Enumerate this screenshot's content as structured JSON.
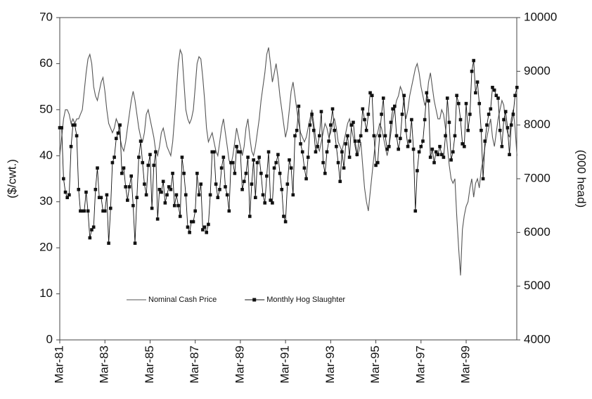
{
  "chart_data": {
    "type": "line",
    "y_label": "($/cwt.)",
    "y2_label": "(000 head)",
    "categories": [
      "Mar-81",
      null,
      null,
      null,
      null,
      null,
      null,
      null,
      null,
      null,
      null,
      null,
      null,
      null,
      null,
      null,
      null,
      null,
      null,
      null,
      null,
      null,
      null,
      null,
      "Mar-83",
      null,
      null,
      null,
      null,
      null,
      null,
      null,
      null,
      null,
      null,
      null,
      null,
      null,
      null,
      null,
      null,
      null,
      null,
      null,
      null,
      null,
      null,
      null,
      "Mar-85",
      null,
      null,
      null,
      null,
      null,
      null,
      null,
      null,
      null,
      null,
      null,
      null,
      null,
      null,
      null,
      null,
      null,
      null,
      null,
      null,
      null,
      null,
      null,
      "Mar-87",
      null,
      null,
      null,
      null,
      null,
      null,
      null,
      null,
      null,
      null,
      null,
      null,
      null,
      null,
      null,
      null,
      null,
      null,
      null,
      null,
      null,
      null,
      null,
      "Mar-89",
      null,
      null,
      null,
      null,
      null,
      null,
      null,
      null,
      null,
      null,
      null,
      null,
      null,
      null,
      null,
      null,
      null,
      null,
      null,
      null,
      null,
      null,
      null,
      "Mar-91",
      null,
      null,
      null,
      null,
      null,
      null,
      null,
      null,
      null,
      null,
      null,
      null,
      null,
      null,
      null,
      null,
      null,
      null,
      null,
      null,
      null,
      null,
      null,
      "Mar-93",
      null,
      null,
      null,
      null,
      null,
      null,
      null,
      null,
      null,
      null,
      null,
      null,
      null,
      null,
      null,
      null,
      null,
      null,
      null,
      null,
      null,
      null,
      null,
      "Mar-95",
      null,
      null,
      null,
      null,
      null,
      null,
      null,
      null,
      null,
      null,
      null,
      null,
      null,
      null,
      null,
      null,
      null,
      null,
      null,
      null,
      null,
      null,
      null,
      "Mar-97",
      null,
      null,
      null,
      null,
      null,
      null,
      null,
      null,
      null,
      null,
      null,
      null,
      null,
      null,
      null,
      null,
      null,
      null,
      null,
      null,
      null,
      null,
      null,
      "Mar-99",
      null,
      null,
      null,
      null,
      null,
      null,
      null,
      null,
      null,
      null,
      null,
      null,
      null,
      null,
      null,
      null,
      null,
      null,
      null,
      null,
      null,
      null,
      null,
      null,
      null,
      null,
      null
    ],
    "series": [
      {
        "name": "Nominal Cash Price",
        "color": "#555555",
        "axis": "y",
        "marker": false,
        "values": [
          40,
          44,
          48,
          50,
          50,
          49,
          47,
          48,
          47,
          48,
          48,
          49,
          50,
          54,
          58,
          61,
          62,
          60,
          55,
          53,
          52,
          54,
          56,
          57,
          54,
          50,
          47,
          46,
          45,
          46,
          48,
          47,
          44,
          42,
          41,
          43,
          46,
          49,
          52,
          54,
          52,
          49,
          46,
          44,
          43,
          45,
          49,
          50,
          48,
          46,
          44,
          41,
          40,
          42,
          45,
          46,
          44,
          42,
          41,
          40,
          43,
          48,
          54,
          60,
          63,
          62,
          56,
          50,
          48,
          47,
          48,
          50,
          55,
          60,
          61.5,
          61,
          57,
          52,
          46,
          43,
          44,
          45,
          43,
          41,
          40,
          43,
          46,
          48,
          45,
          42,
          39,
          38,
          40,
          43,
          46,
          44,
          42,
          40,
          42,
          46,
          48,
          44,
          41,
          40,
          42,
          45,
          48,
          52,
          55,
          58,
          62,
          63.5,
          60,
          56,
          58,
          60,
          57,
          53,
          50,
          47,
          44,
          46,
          50,
          54,
          56,
          53,
          50,
          47,
          45,
          44,
          43,
          44,
          46,
          48,
          50,
          47,
          44,
          42,
          41,
          43,
          45,
          47,
          46,
          44,
          45,
          47,
          48,
          46,
          43,
          42,
          41,
          43,
          45,
          47,
          48,
          46,
          44,
          42,
          40,
          41,
          43,
          38,
          33,
          30,
          28,
          32,
          36,
          40,
          44,
          45,
          47,
          46,
          44,
          42,
          40,
          42,
          45,
          48,
          50,
          52,
          53,
          55,
          54,
          51,
          48,
          50,
          53,
          55,
          57,
          59,
          60,
          58,
          55,
          53,
          51,
          52,
          56,
          58,
          55,
          52,
          50,
          48,
          48,
          50,
          49,
          46,
          42,
          38,
          35,
          34,
          35,
          27,
          20,
          14,
          24,
          27,
          29,
          30,
          33,
          35,
          31,
          34,
          35,
          33,
          37,
          39,
          42,
          44,
          46,
          48,
          44,
          42,
          45,
          48,
          50,
          52,
          51,
          47,
          45,
          44,
          48,
          50,
          46,
          40
        ]
      },
      {
        "name": "Monthly Hog Slaughter",
        "color": "#111111",
        "axis": "y2",
        "marker": true,
        "values": [
          7950,
          7950,
          7000,
          6750,
          6650,
          6700,
          7600,
          8000,
          8000,
          7800,
          6800,
          6400,
          6400,
          6400,
          6750,
          6400,
          5900,
          6050,
          6100,
          6800,
          7200,
          6650,
          6650,
          6400,
          6400,
          6700,
          5800,
          6450,
          7300,
          7400,
          7750,
          7850,
          8000,
          7100,
          7200,
          6850,
          6600,
          6850,
          7050,
          6500,
          5800,
          6650,
          7400,
          7700,
          7300,
          6900,
          6700,
          7250,
          7450,
          6450,
          7250,
          7500,
          6250,
          6800,
          6750,
          6950,
          6550,
          6700,
          6850,
          6800,
          7100,
          6500,
          6700,
          6500,
          6300,
          7400,
          7100,
          6700,
          6100,
          6000,
          6200,
          6200,
          6400,
          7100,
          6700,
          6900,
          6050,
          6100,
          6000,
          6150,
          6700,
          7500,
          7500,
          6900,
          6650,
          6800,
          7200,
          7400,
          6850,
          6700,
          6400,
          7300,
          7300,
          7100,
          7600,
          7500,
          7500,
          6800,
          6950,
          7100,
          7400,
          6300,
          6900,
          7350,
          6650,
          7300,
          7400,
          7100,
          6700,
          6550,
          7050,
          7500,
          6600,
          6550,
          7200,
          7300,
          7450,
          7100,
          6800,
          6300,
          6200,
          6900,
          7350,
          7200,
          6700,
          7800,
          7900,
          8350,
          7650,
          7500,
          7200,
          7000,
          7400,
          8000,
          8200,
          7900,
          7500,
          7600,
          7800,
          8250,
          7300,
          7100,
          7500,
          7700,
          8000,
          8300,
          7900,
          7600,
          7300,
          6950,
          7500,
          7200,
          7650,
          7800,
          7400,
          8000,
          8050,
          7700,
          7450,
          7700,
          7800,
          8300,
          8100,
          7900,
          8200,
          8600,
          8550,
          7800,
          7250,
          7300,
          7800,
          8200,
          8500,
          7800,
          7550,
          7600,
          8050,
          8300,
          8350,
          7800,
          7550,
          7750,
          8200,
          8550,
          7900,
          7600,
          7700,
          8100,
          7550,
          6400,
          7150,
          7500,
          7600,
          7700,
          8100,
          8600,
          8450,
          7400,
          7550,
          7300,
          7500,
          7450,
          7600,
          7450,
          7400,
          7800,
          8500,
          8050,
          7350,
          7500,
          7800,
          8550,
          8400,
          8100,
          7650,
          7600,
          8400,
          7900,
          8200,
          9000,
          9200,
          8600,
          8800,
          8400,
          7900,
          7000,
          7700,
          8000,
          8200,
          8300,
          8700,
          8650,
          8550,
          8500,
          7900,
          7600,
          8100,
          8250,
          7950,
          7450,
          8000,
          8200,
          8550,
          8700
        ]
      }
    ],
    "ylim": [
      0,
      70
    ],
    "yticks": [
      0,
      10,
      20,
      30,
      40,
      50,
      60,
      70
    ],
    "y2lim": [
      4000,
      10000
    ],
    "y2ticks": [
      4000,
      5000,
      6000,
      7000,
      8000,
      9000,
      10000
    ],
    "grid": false,
    "legend": "bottom-left"
  }
}
